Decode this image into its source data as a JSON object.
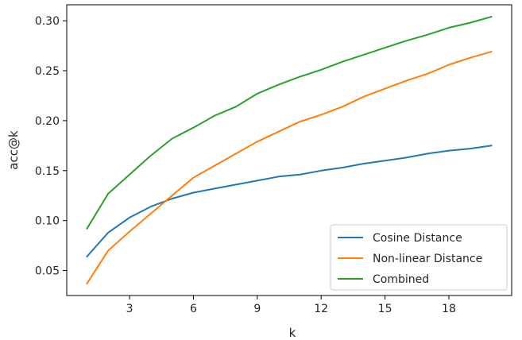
{
  "chart_data": {
    "type": "line",
    "title": "",
    "xlabel": "k",
    "ylabel": "acc@k",
    "xlim": [
      0.05,
      20.95
    ],
    "ylim": [
      0.025,
      0.316
    ],
    "xticks": [
      3,
      6,
      9,
      12,
      15,
      18
    ],
    "yticks": [
      0.05,
      0.1,
      0.15,
      0.2,
      0.25,
      0.3
    ],
    "ytick_labels": [
      "0.05",
      "0.10",
      "0.15",
      "0.20",
      "0.25",
      "0.30"
    ],
    "grid": false,
    "legend_position": "bottom-right",
    "x": [
      1,
      2,
      3,
      4,
      5,
      6,
      7,
      8,
      9,
      10,
      11,
      12,
      13,
      14,
      15,
      16,
      17,
      18,
      19,
      20
    ],
    "series": [
      {
        "name": "Cosine Distance",
        "color": "#1f77b4",
        "values": [
          0.064,
          0.088,
          0.103,
          0.114,
          0.122,
          0.128,
          0.132,
          0.136,
          0.14,
          0.144,
          0.146,
          0.15,
          0.153,
          0.157,
          0.16,
          0.163,
          0.167,
          0.17,
          0.172,
          0.175
        ]
      },
      {
        "name": "Non-linear Distance",
        "color": "#ff7f0e",
        "values": [
          0.037,
          0.07,
          0.089,
          0.107,
          0.125,
          0.143,
          0.155,
          0.167,
          0.179,
          0.189,
          0.199,
          0.206,
          0.214,
          0.224,
          0.232,
          0.24,
          0.247,
          0.256,
          0.263,
          0.269
        ]
      },
      {
        "name": "Combined",
        "color": "#2ca02c",
        "values": [
          0.092,
          0.127,
          0.146,
          0.165,
          0.182,
          0.193,
          0.205,
          0.214,
          0.227,
          0.236,
          0.244,
          0.251,
          0.259,
          0.266,
          0.273,
          0.28,
          0.286,
          0.293,
          0.298,
          0.304
        ]
      }
    ]
  }
}
